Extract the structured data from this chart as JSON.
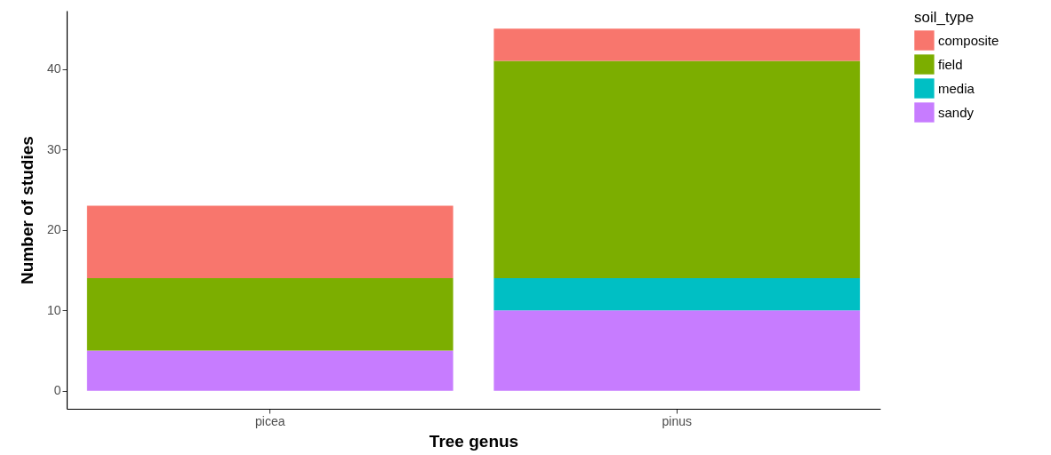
{
  "chart_data": {
    "type": "bar",
    "stacked": true,
    "xlabel": "Tree genus",
    "ylabel": "Number of studies",
    "legend_title": "soil_type",
    "categories": [
      "picea",
      "pinus"
    ],
    "series": [
      {
        "name": "sandy",
        "color": "#c77cff",
        "values": [
          5,
          10
        ]
      },
      {
        "name": "media",
        "color": "#00bfc4",
        "values": [
          null,
          4
        ]
      },
      {
        "name": "field",
        "color": "#7cae00",
        "values": [
          9,
          27
        ]
      },
      {
        "name": "composite",
        "color": "#f8766d",
        "values": [
          9,
          4
        ]
      }
    ],
    "ylim": [
      -2.25,
      47.25
    ],
    "yticks": [
      0,
      10,
      20,
      30,
      40
    ],
    "grid": false,
    "legend": "right"
  }
}
